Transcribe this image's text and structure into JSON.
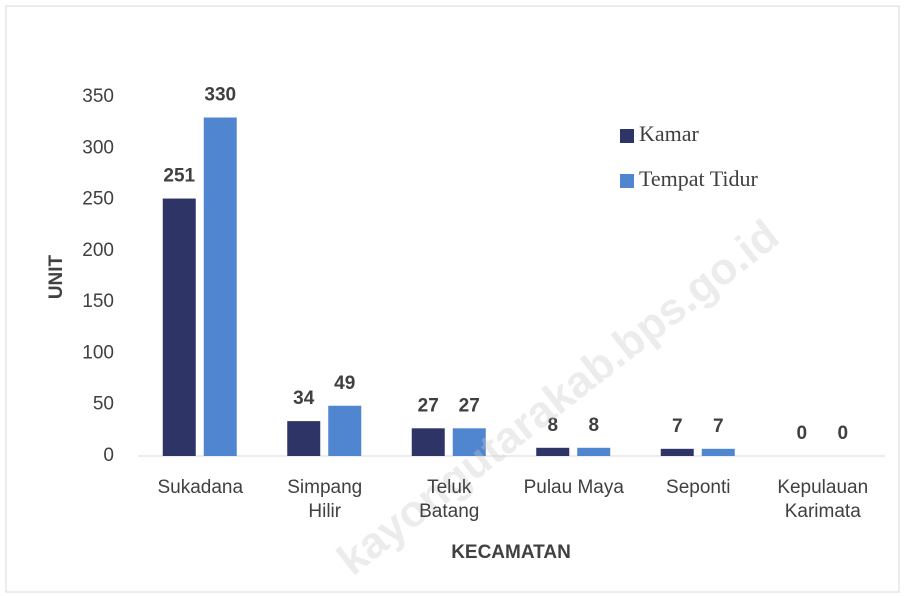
{
  "chart_data": {
    "type": "bar",
    "categories": [
      "Sukadana",
      "Simpang Hilir",
      "Teluk Batang",
      "Pulau Maya",
      "Seponti",
      "Kepulauan Karimata"
    ],
    "series": [
      {
        "name": "Kamar",
        "color": "#2e3466",
        "values": [
          251,
          34,
          27,
          8,
          7,
          0
        ]
      },
      {
        "name": "Tempat Tidur",
        "color": "#4f86cf",
        "values": [
          330,
          49,
          27,
          8,
          7,
          0
        ]
      }
    ],
    "ylim": [
      0,
      350
    ],
    "yticks": [
      0,
      50,
      100,
      150,
      200,
      250,
      300,
      350
    ],
    "y_label": "UNIT",
    "x_label": "KECAMATAN",
    "grid": false,
    "legend": "upper right",
    "watermark": "kayongutarakab.bps.go.id"
  }
}
